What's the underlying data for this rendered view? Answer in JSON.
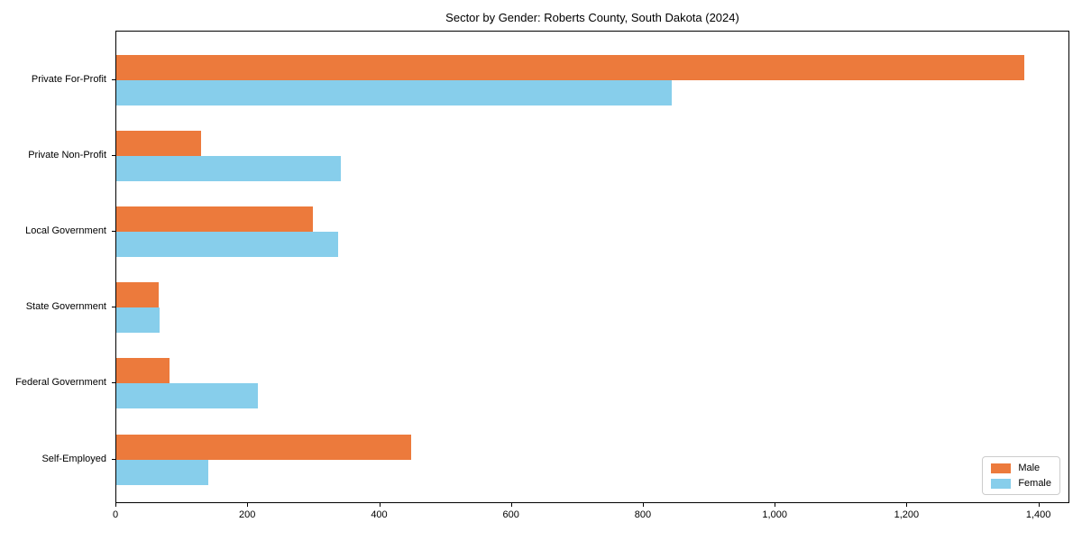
{
  "chart_data": {
    "type": "bar",
    "orientation": "horizontal",
    "title": "Sector by Gender: Roberts County, South Dakota (2024)",
    "categories": [
      "Private For-Profit",
      "Private Non-Profit",
      "Local Government",
      "State Government",
      "Federal Government",
      "Self-Employed"
    ],
    "series": [
      {
        "name": "Male",
        "color": "#ec7a3c",
        "values": [
          1377,
          128,
          298,
          64,
          80,
          447
        ]
      },
      {
        "name": "Female",
        "color": "#87ceeb",
        "values": [
          842,
          340,
          336,
          66,
          215,
          139
        ]
      }
    ],
    "xlabel": "",
    "ylabel": "",
    "xlim": [
      0,
      1447
    ],
    "xticks": [
      0,
      200,
      400,
      600,
      800,
      1000,
      1200,
      1400
    ],
    "xtick_labels": [
      "0",
      "200",
      "400",
      "600",
      "800",
      "1,000",
      "1,200",
      "1,400"
    ],
    "grid": false,
    "plot_background": "#ffffff",
    "legend_position": "lower right"
  }
}
